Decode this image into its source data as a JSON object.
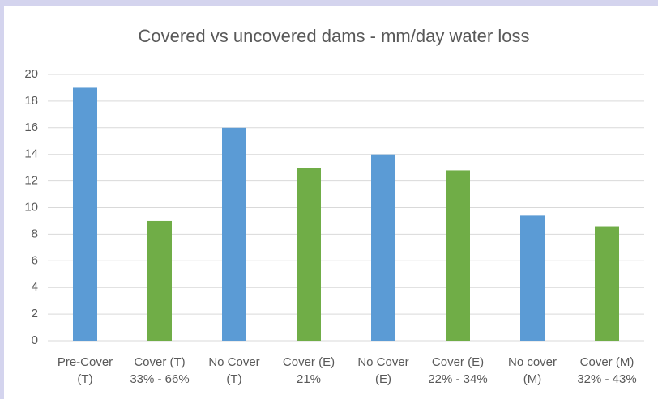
{
  "chart_data": {
    "type": "bar",
    "title": "Covered vs uncovered dams - mm/day water loss",
    "categories": [
      [
        "Pre-Cover",
        "(T)"
      ],
      [
        "Cover (T)",
        "33% - 66%"
      ],
      [
        "No Cover",
        "(T)"
      ],
      [
        "Cover (E)",
        "21%"
      ],
      [
        "No Cover",
        "(E)"
      ],
      [
        "Cover (E)",
        "22% - 34%"
      ],
      [
        "No cover",
        "(M)"
      ],
      [
        "Cover (M)",
        "32% - 43%"
      ]
    ],
    "values": [
      19,
      9,
      16,
      13,
      14,
      12.8,
      9.4,
      8.6
    ],
    "colors": [
      "#5b9bd5",
      "#70ad47",
      "#5b9bd5",
      "#70ad47",
      "#5b9bd5",
      "#70ad47",
      "#5b9bd5",
      "#70ad47"
    ],
    "ylim": [
      0,
      20
    ],
    "yticks": [
      0,
      2,
      4,
      6,
      8,
      10,
      12,
      14,
      16,
      18,
      20
    ],
    "grid": true
  }
}
